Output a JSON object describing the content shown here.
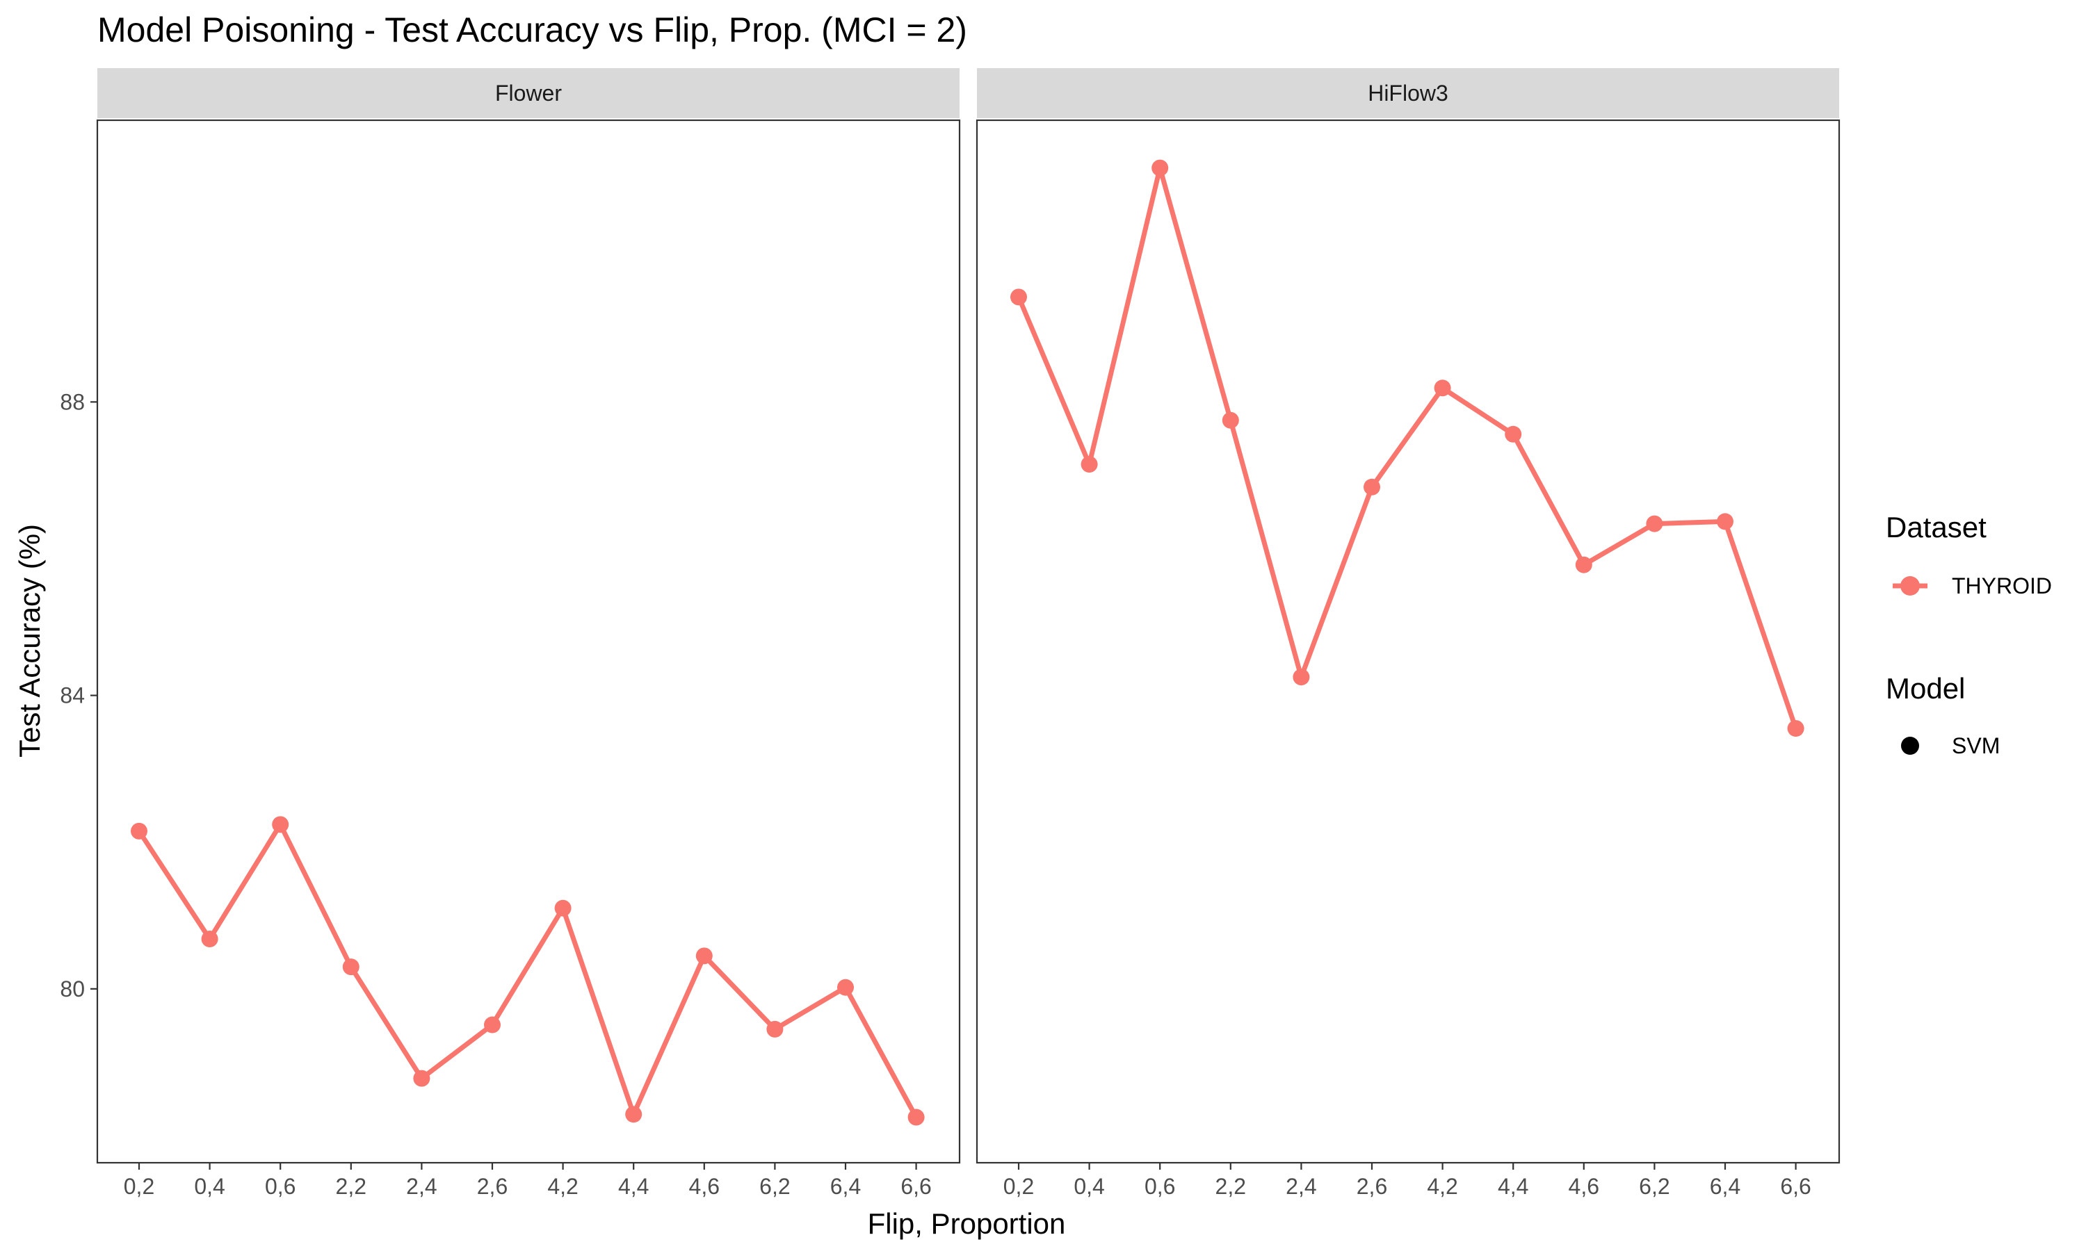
{
  "chart_data": {
    "type": "line",
    "title": "Model Poisoning - Test Accuracy vs Flip, Prop. (MCI = 2)",
    "xlabel": "Flip, Proportion",
    "ylabel": "Test Accuracy (%)",
    "categories": [
      "0,2",
      "0,4",
      "0,6",
      "2,2",
      "2,4",
      "2,6",
      "4,2",
      "4,4",
      "4,6",
      "6,2",
      "6,4",
      "6,6"
    ],
    "ylim": [
      77.63,
      91.84
    ],
    "yticks": [
      80,
      84,
      88
    ],
    "grid": false,
    "legend_position": "right",
    "colors": {
      "series": "#F8766D",
      "model_point": "#000000"
    },
    "panels": [
      {
        "name": "Flower",
        "series": [
          {
            "name": "THYROID",
            "values": [
              82.15,
              80.68,
              82.24,
              80.3,
              78.78,
              79.51,
              81.1,
              78.29,
              80.45,
              79.45,
              80.02,
              78.25
            ]
          }
        ]
      },
      {
        "name": "HiFlow3",
        "series": [
          {
            "name": "THYROID",
            "values": [
              89.43,
              87.15,
              91.19,
              87.75,
              84.25,
              86.84,
              88.19,
              87.56,
              85.78,
              86.34,
              86.37,
              83.55
            ]
          }
        ]
      }
    ],
    "legend": {
      "dataset_title": "Dataset",
      "dataset_items": [
        "THYROID"
      ],
      "model_title": "Model",
      "model_items": [
        "SVM"
      ]
    }
  }
}
